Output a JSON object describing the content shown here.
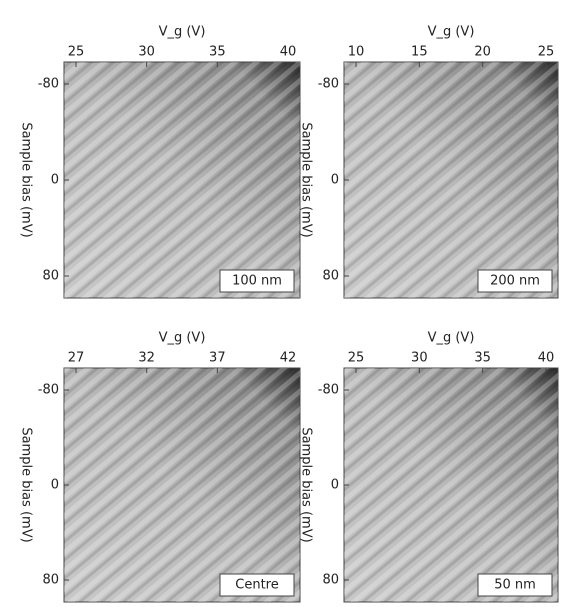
{
  "panels": [
    {
      "x_axis_label": "V_g (V)",
      "x_ticks": [
        "25",
        "30",
        "35",
        "40"
      ],
      "y_axis_label": "Sample bias (mV)",
      "y_ticks": [
        "-80",
        "0",
        "80"
      ],
      "label": "100 nm"
    },
    {
      "x_axis_label": "V_g (V)",
      "x_ticks": [
        "10",
        "15",
        "20",
        "25"
      ],
      "y_axis_label": "Sample bias (mV)",
      "y_ticks": [
        "-80",
        "0",
        "80"
      ],
      "label": "200 nm"
    },
    {
      "x_axis_label": "V_g (V)",
      "x_ticks": [
        "27",
        "32",
        "37",
        "42"
      ],
      "y_axis_label": "Sample bias (mV)",
      "y_ticks": [
        "-80",
        "0",
        "80"
      ],
      "label": "Centre"
    },
    {
      "x_axis_label": "V_g (V)",
      "x_ticks": [
        "25",
        "30",
        "35",
        "40"
      ],
      "y_axis_label": "Sample bias (mV)",
      "y_ticks": [
        "-80",
        "0",
        "80"
      ],
      "label": "50 nm"
    }
  ]
}
